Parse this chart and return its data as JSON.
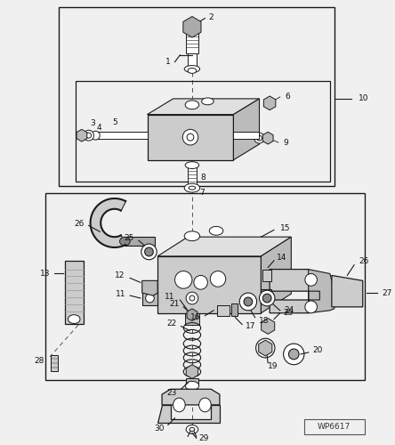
{
  "bg_color": "#f0f0f0",
  "line_color": "#1a1a1a",
  "wp_label": "WP6617",
  "figsize": [
    4.44,
    5.0
  ],
  "dpi": 100
}
